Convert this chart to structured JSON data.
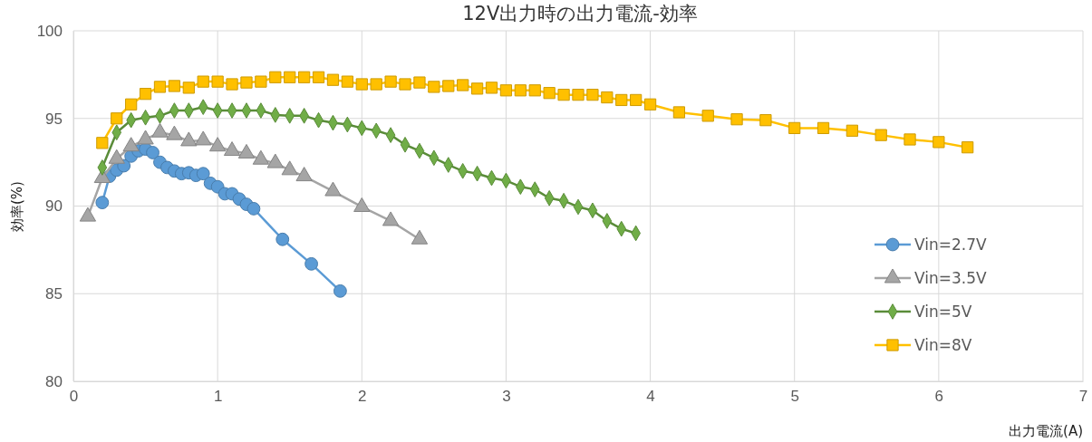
{
  "chart_data": {
    "type": "line",
    "title": "12V出力時の出力電流-効率",
    "xlabel": "出力電流(A)",
    "ylabel": "効率(%)",
    "xlim": [
      0,
      7
    ],
    "xticks": [
      0,
      1,
      2,
      3,
      4,
      5,
      6,
      7
    ],
    "ylim": [
      80,
      100
    ],
    "yticks": [
      80,
      85,
      90,
      95,
      100
    ],
    "grid": true,
    "legend": "bottom right",
    "line_style": "solid",
    "series": [
      {
        "name": "Vin=2.7V",
        "color": "#5b9bd5",
        "marker": "circle",
        "x": [
          0.2,
          0.25,
          0.3,
          0.35,
          0.4,
          0.45,
          0.5,
          0.55,
          0.6,
          0.65,
          0.7,
          0.75,
          0.8,
          0.85,
          0.9,
          0.95,
          1.0,
          1.05,
          1.1,
          1.15,
          1.2,
          1.25,
          1.45,
          1.65,
          1.85
        ],
        "values": [
          90.2,
          91.7,
          92.05,
          92.3,
          92.85,
          93.15,
          93.25,
          93.05,
          92.5,
          92.2,
          92.0,
          91.85,
          91.9,
          91.75,
          91.85,
          91.3,
          91.1,
          90.7,
          90.7,
          90.4,
          90.1,
          89.85,
          88.1,
          86.7,
          85.15
        ]
      },
      {
        "name": "Vin=3.5V",
        "color": "#a5a5a5",
        "marker": "triangle",
        "x": [
          0.1,
          0.2,
          0.3,
          0.4,
          0.5,
          0.6,
          0.7,
          0.8,
          0.9,
          1.0,
          1.1,
          1.2,
          1.3,
          1.4,
          1.5,
          1.6,
          1.8,
          2.0,
          2.2,
          2.4
        ],
        "values": [
          89.4,
          91.6,
          92.7,
          93.4,
          93.8,
          94.2,
          94.05,
          93.7,
          93.75,
          93.4,
          93.15,
          93.0,
          92.65,
          92.45,
          92.05,
          91.7,
          90.85,
          89.95,
          89.15,
          88.1
        ]
      },
      {
        "name": "Vin=5V",
        "color": "#70ad47",
        "marker": "diamond",
        "x": [
          0.2,
          0.3,
          0.4,
          0.5,
          0.6,
          0.7,
          0.8,
          0.9,
          1.0,
          1.1,
          1.2,
          1.3,
          1.4,
          1.5,
          1.6,
          1.7,
          1.8,
          1.9,
          2.0,
          2.1,
          2.2,
          2.3,
          2.4,
          2.5,
          2.6,
          2.7,
          2.8,
          2.9,
          3.0,
          3.1,
          3.2,
          3.3,
          3.4,
          3.5,
          3.6,
          3.7,
          3.8,
          3.9
        ],
        "values": [
          92.2,
          94.2,
          94.9,
          95.05,
          95.15,
          95.45,
          95.45,
          95.65,
          95.45,
          95.45,
          95.45,
          95.45,
          95.2,
          95.15,
          95.15,
          94.9,
          94.75,
          94.65,
          94.45,
          94.3,
          94.05,
          93.5,
          93.15,
          92.75,
          92.35,
          92.0,
          91.85,
          91.6,
          91.45,
          91.1,
          90.95,
          90.45,
          90.3,
          89.95,
          89.75,
          89.15,
          88.7,
          88.45
        ]
      },
      {
        "name": "Vin=8V",
        "color": "#ffc000",
        "marker": "square",
        "x": [
          0.2,
          0.3,
          0.4,
          0.5,
          0.6,
          0.7,
          0.8,
          0.9,
          1.0,
          1.1,
          1.2,
          1.3,
          1.4,
          1.5,
          1.6,
          1.7,
          1.8,
          1.9,
          2.0,
          2.1,
          2.2,
          2.3,
          2.4,
          2.5,
          2.6,
          2.7,
          2.8,
          2.9,
          3.0,
          3.1,
          3.2,
          3.3,
          3.4,
          3.5,
          3.6,
          3.7,
          3.8,
          3.9,
          4.0,
          4.2,
          4.4,
          4.6,
          4.8,
          5.0,
          5.2,
          5.4,
          5.6,
          5.8,
          6.0,
          6.2
        ],
        "values": [
          93.6,
          95.0,
          95.8,
          96.4,
          96.8,
          96.85,
          96.75,
          97.1,
          97.1,
          96.95,
          97.05,
          97.1,
          97.35,
          97.35,
          97.35,
          97.35,
          97.2,
          97.1,
          96.95,
          96.95,
          97.1,
          96.95,
          97.05,
          96.8,
          96.85,
          96.9,
          96.7,
          96.75,
          96.6,
          96.6,
          96.6,
          96.45,
          96.35,
          96.35,
          96.35,
          96.2,
          96.05,
          96.05,
          95.8,
          95.35,
          95.15,
          94.95,
          94.9,
          94.45,
          94.45,
          94.3,
          94.05,
          93.8,
          93.65,
          93.35
        ]
      }
    ]
  }
}
